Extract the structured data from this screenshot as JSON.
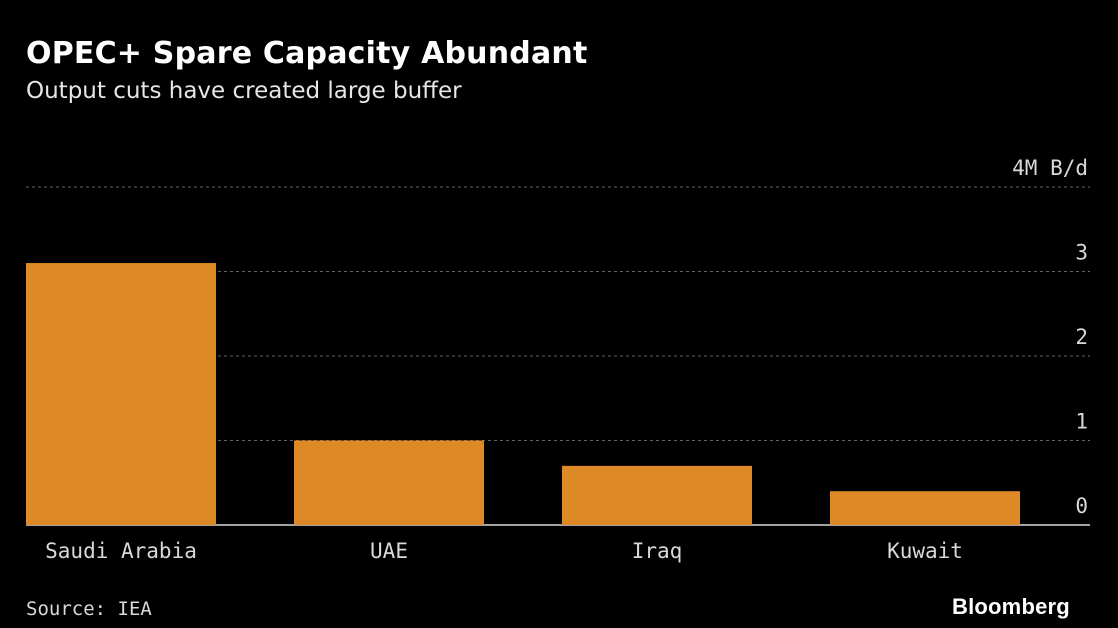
{
  "header": {
    "title": "OPEC+ Spare Capacity Abundant",
    "subtitle": "Output cuts have created large buffer"
  },
  "footer": {
    "source": "Source: IEA",
    "brand": "Bloomberg"
  },
  "colors": {
    "background": "#000000",
    "bar": "#dd8925",
    "grid": "#666666",
    "text": "#d9d9d9"
  },
  "chart_data": {
    "type": "bar",
    "categories": [
      "Saudi Arabia",
      "UAE",
      "Iraq",
      "Kuwait"
    ],
    "values": [
      3.1,
      1.0,
      0.7,
      0.4
    ],
    "y_ticks": [
      0,
      1,
      2,
      3,
      4
    ],
    "y_tick_labels": [
      "0",
      "1",
      "2",
      "3",
      "4M B/d"
    ],
    "ylim": [
      0,
      4
    ],
    "grid": true,
    "y_axis_position": "right"
  }
}
